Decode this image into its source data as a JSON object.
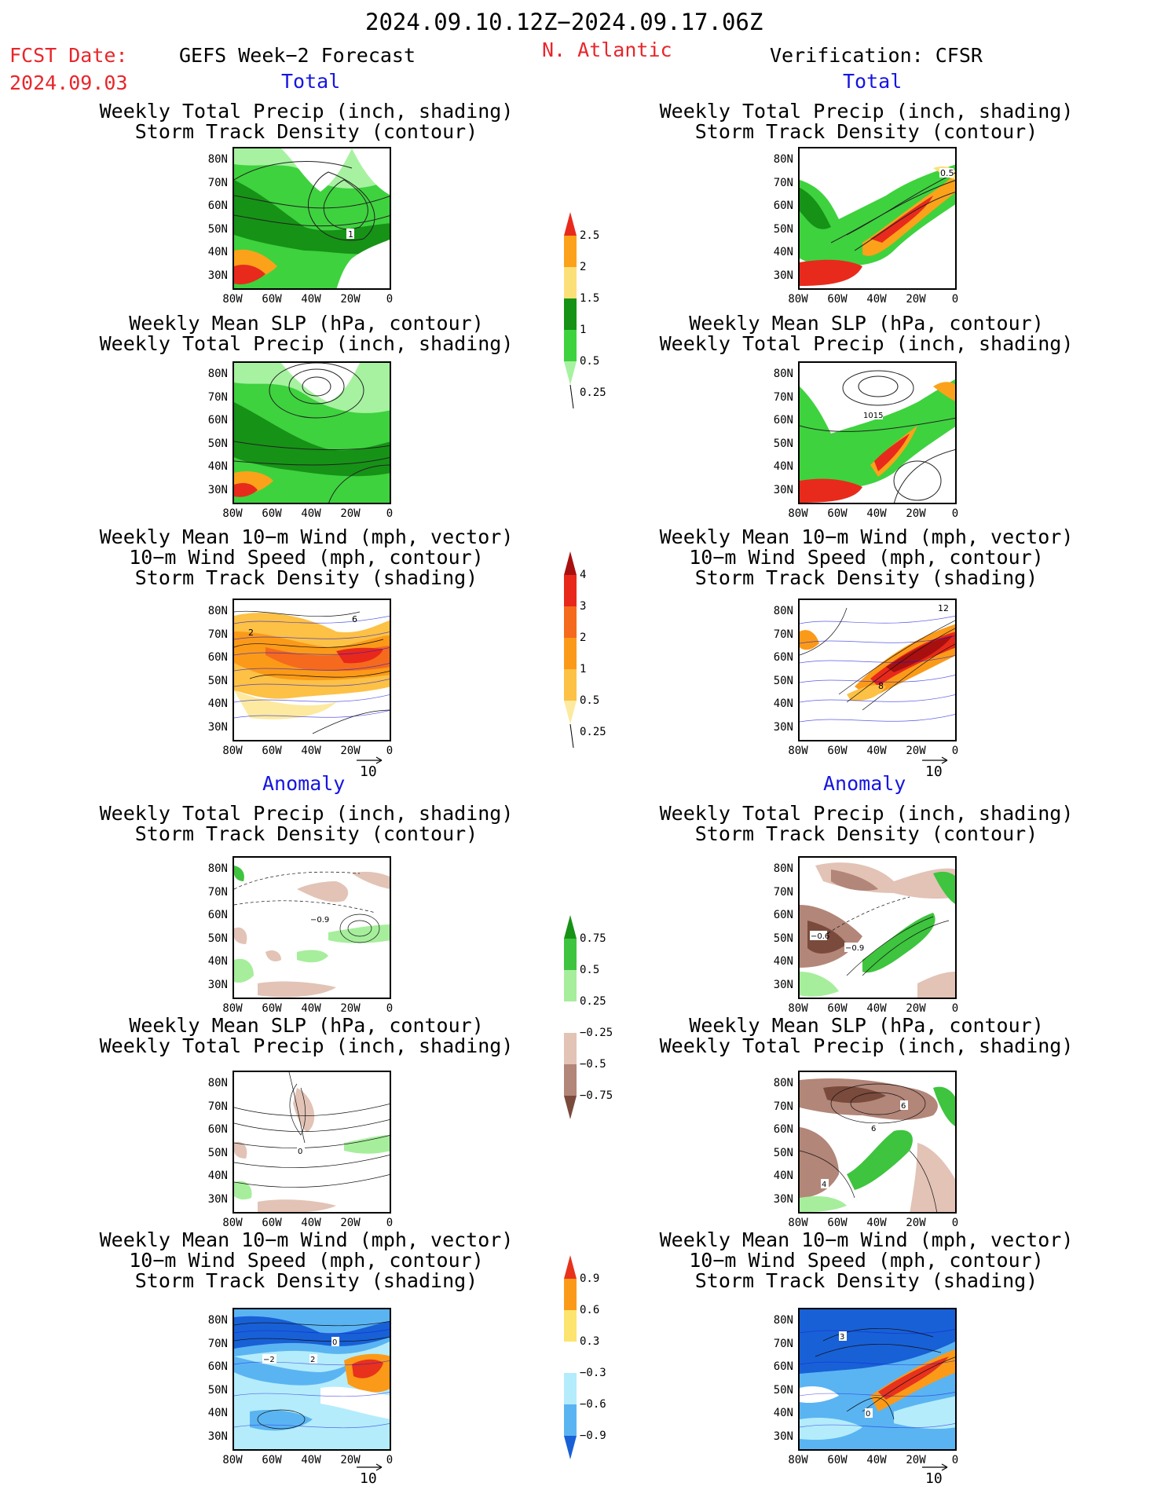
{
  "header": {
    "date_range": "2024.09.10.12Z−2024.09.17.06Z",
    "fcst_label": "FCST Date:",
    "fcst_date": "2024.09.03",
    "model_title": "GEFS Week−2 Forecast",
    "region": "N. Atlantic",
    "verification": "Verification: CFSR"
  },
  "sections": {
    "total": "Total",
    "anomaly": "Anomaly"
  },
  "titles": {
    "precip_track": [
      "Weekly Total Precip (inch, shading)",
      "Storm Track Density (contour)"
    ],
    "slp_precip": [
      "Weekly Mean SLP (hPa, contour)",
      "Weekly Total Precip (inch, shading)"
    ],
    "wind_track": [
      "Weekly Mean 10−m Wind (mph, vector)",
      "10−m Wind Speed (mph, contour)",
      "Storm Track Density (shading)"
    ]
  },
  "axes": {
    "lat_ticks": [
      "80N",
      "70N",
      "60N",
      "50N",
      "40N",
      "30N"
    ],
    "lon_ticks": [
      "80W",
      "60W",
      "40W",
      "20W",
      "0"
    ]
  },
  "vector_scale": "10",
  "colorbars": {
    "precip_total": {
      "labels": [
        "2.5",
        "2",
        "1.5",
        "1",
        "0.5",
        "0.25"
      ],
      "colors": [
        "#e82a1c",
        "#fba21a",
        "#fbe07a",
        "#169216",
        "#3ed23e",
        "#a6f2a0"
      ]
    },
    "track_total": {
      "labels": [
        "4",
        "3",
        "2",
        "1",
        "0.5",
        "0.25"
      ],
      "colors": [
        "#a81010",
        "#e8281a",
        "#f56a1c",
        "#fb9a18",
        "#fcc145",
        "#fdeaa0"
      ]
    },
    "precip_anom": {
      "labels": [
        "0.75",
        "0.5",
        "0.25",
        "−0.25",
        "−0.5",
        "−0.75"
      ],
      "colors": [
        "#169216",
        "#3ec43e",
        "#a6ee9c",
        "#ffffff",
        "#e2c3b6",
        "#b28678",
        "#7a4a3c"
      ]
    },
    "track_anom": {
      "labels": [
        "0.9",
        "0.6",
        "0.3",
        "−0.3",
        "−0.6",
        "−0.9"
      ],
      "colors": [
        "#e8321c",
        "#fb9a18",
        "#fce46e",
        "#ffffff",
        "#b4ecfb",
        "#5ab4f2",
        "#1860d6"
      ]
    }
  },
  "contour_labels": {
    "fcst_total_precip": "1",
    "cfsr_total_precip": "0.5",
    "cfsr_total_slp": "1015",
    "fcst_total_wind_a": "2",
    "fcst_total_wind_b": "6",
    "cfsr_total_wind_a": "12",
    "cfsr_total_wind_b": "8",
    "fcst_anom_precip": "−0.9",
    "cfsr_anom_precip_a": "−0.6",
    "cfsr_anom_precip_b": "−0.9",
    "fcst_anom_slp": "0",
    "cfsr_anom_slp_a": "6",
    "cfsr_anom_slp_b": "6",
    "cfsr_anom_slp_c": "4",
    "fcst_anom_wind_a": "−2",
    "fcst_anom_wind_b": "2",
    "fcst_anom_wind_c": "0",
    "cfsr_anom_wind_a": "3",
    "cfsr_anom_wind_b": "0"
  }
}
